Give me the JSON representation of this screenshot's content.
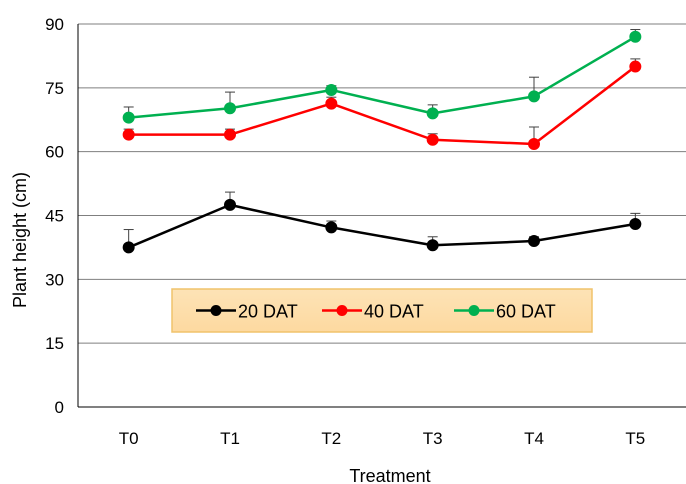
{
  "chart_data": {
    "type": "line",
    "xlabel": "Treatment",
    "ylabel": "Plant height (cm)",
    "categories": [
      "T0",
      "T1",
      "T2",
      "T3",
      "T4",
      "T5"
    ],
    "ylim": [
      0,
      90
    ],
    "yticks": [
      0,
      15,
      30,
      45,
      60,
      75,
      90
    ],
    "grid": true,
    "legend_position": "lower-center, inside plot",
    "legend_background": "#fdd9a0",
    "legend_border": "#f0c36b",
    "series": [
      {
        "name": "20 DAT",
        "color": "#000000",
        "values": [
          37.5,
          47.5,
          42.2,
          38.0,
          39.0,
          43.0
        ],
        "errors": [
          4.2,
          3.0,
          1.5,
          2.0,
          1.0,
          2.5
        ]
      },
      {
        "name": "40 DAT",
        "color": "#ff0000",
        "values": [
          64.0,
          64.0,
          71.3,
          62.8,
          61.8,
          80.0
        ],
        "errors": [
          1.3,
          1.3,
          1.5,
          1.4,
          4.0,
          1.8
        ]
      },
      {
        "name": "60 DAT",
        "color": "#00b050",
        "values": [
          68.0,
          70.2,
          74.5,
          69.0,
          73.0,
          87.0
        ],
        "errors": [
          2.5,
          3.8,
          1.0,
          2.0,
          4.5,
          1.7
        ]
      }
    ]
  }
}
